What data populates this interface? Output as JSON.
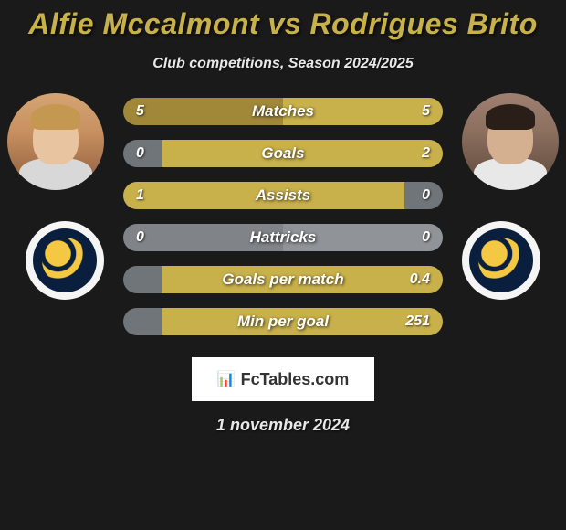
{
  "title": "Alfie Mccalmont vs Rodrigues Brito",
  "title_color": "#c8b04a",
  "subtitle": "Club competitions, Season 2024/2025",
  "subtitle_color": "#e8e8e8",
  "background_color": "#1a1a1a",
  "players": {
    "left": {
      "name": "Alfie Mccalmont",
      "avatar_bg": "#d4a574",
      "hair_color": "#c49850",
      "skin_color": "#e8c4a0",
      "shirt_color": "#d8d8d8"
    },
    "right": {
      "name": "Rodrigues Brito",
      "avatar_bg": "#a08070",
      "hair_color": "#2a1f18",
      "skin_color": "#d4b090",
      "shirt_color": "#e8e8e8"
    }
  },
  "club_badge": {
    "outer_bg": "#f5f5f5",
    "inner_bg": "#0a1e3d",
    "accent_color": "#f4c842",
    "name": "Central Coast Mariners"
  },
  "bar_style": {
    "height": 30,
    "border_radius": 15,
    "gap": 16,
    "font_size": 16,
    "label_font_size": 17,
    "left_color": "#a08838",
    "right_color": "#c8b04a",
    "zero_color": "#70757a",
    "neutral_color": "#888888",
    "text_color": "#ffffff"
  },
  "stats": [
    {
      "label": "Matches",
      "left_value": "5",
      "right_value": "5",
      "left_width_pct": 50,
      "right_width_pct": 50,
      "left_bg": "#a08838",
      "right_bg": "#c8b04a"
    },
    {
      "label": "Goals",
      "left_value": "0",
      "right_value": "2",
      "left_width_pct": 12,
      "right_width_pct": 88,
      "left_bg": "#70757a",
      "right_bg": "#c8b04a"
    },
    {
      "label": "Assists",
      "left_value": "1",
      "right_value": "0",
      "left_width_pct": 88,
      "right_width_pct": 12,
      "left_bg": "#c8b04a",
      "right_bg": "#70757a"
    },
    {
      "label": "Hattricks",
      "left_value": "0",
      "right_value": "0",
      "left_width_pct": 50,
      "right_width_pct": 50,
      "left_bg": "#808488",
      "right_bg": "#909498"
    },
    {
      "label": "Goals per match",
      "left_value": "",
      "right_value": "0.4",
      "left_width_pct": 12,
      "right_width_pct": 88,
      "left_bg": "#70757a",
      "right_bg": "#c8b04a"
    },
    {
      "label": "Min per goal",
      "left_value": "",
      "right_value": "251",
      "left_width_pct": 12,
      "right_width_pct": 88,
      "left_bg": "#70757a",
      "right_bg": "#c8b04a"
    }
  ],
  "watermark": {
    "text": "FcTables.com",
    "bg": "#ffffff",
    "text_color": "#333333"
  },
  "date": "1 november 2024",
  "date_color": "#e8e8e8"
}
